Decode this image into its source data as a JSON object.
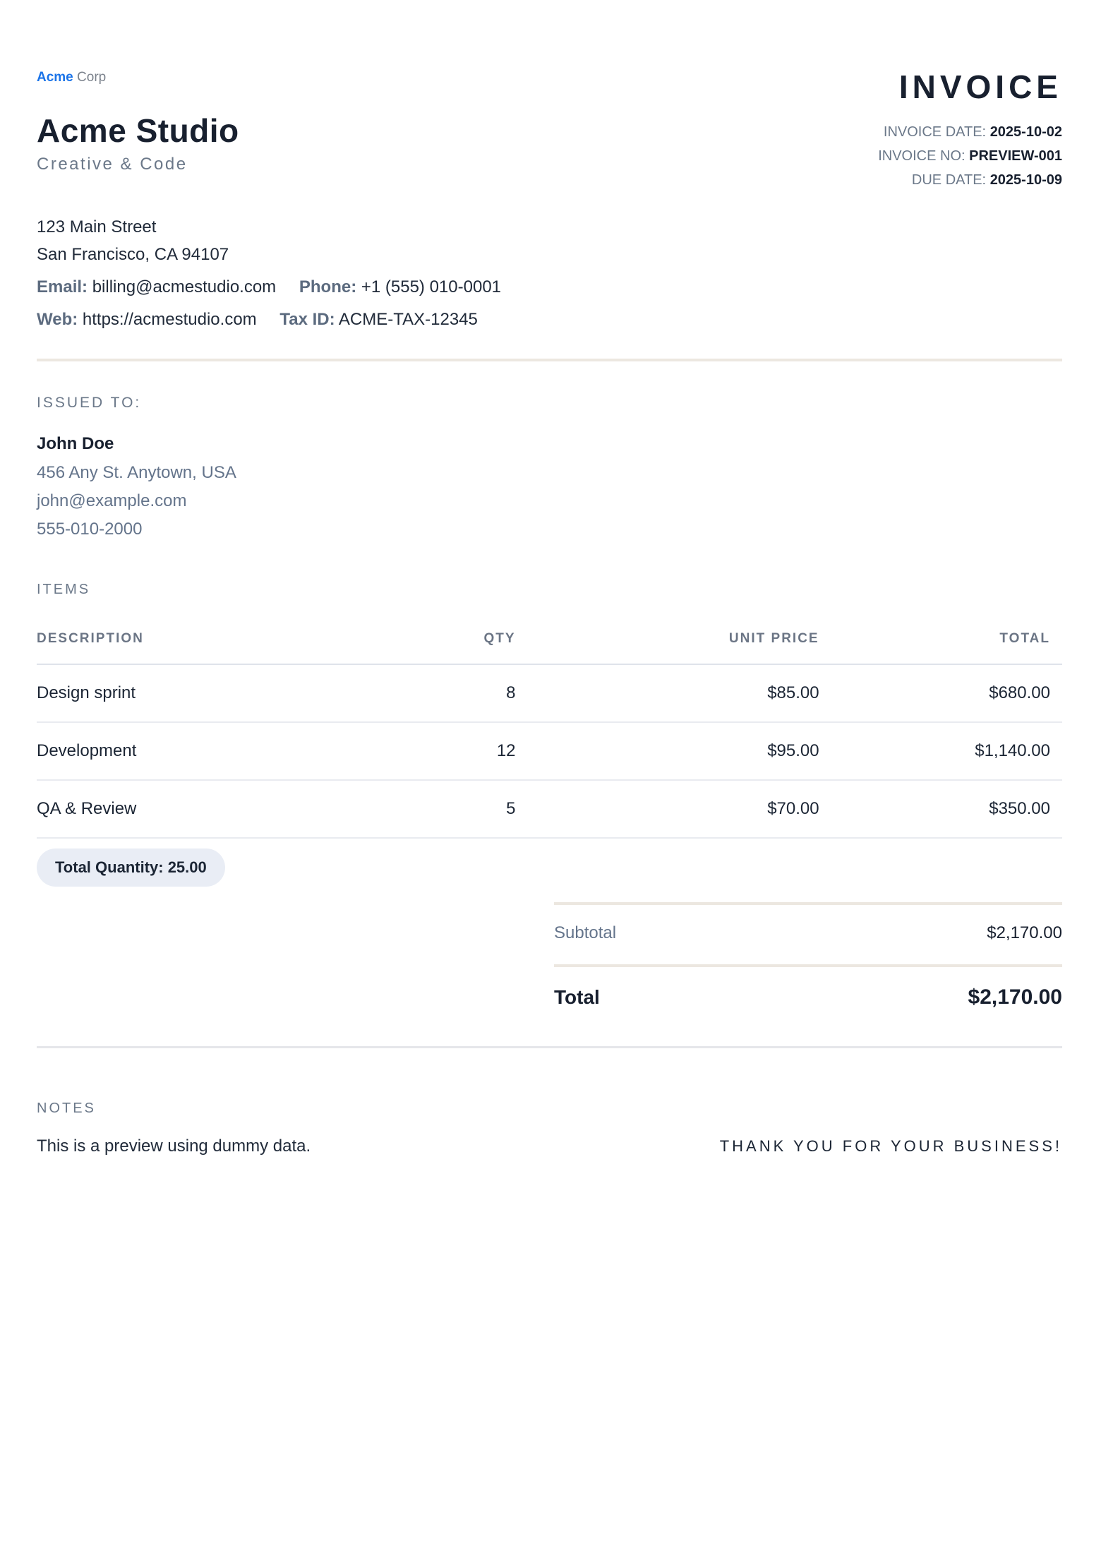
{
  "brand": {
    "logo_primary": "Acme",
    "logo_secondary": "Corp",
    "company_name": "Acme Studio",
    "tagline": "Creative & Code"
  },
  "header": {
    "title": "INVOICE",
    "meta": [
      {
        "label": "INVOICE DATE:",
        "value": "2025-10-02"
      },
      {
        "label": "INVOICE NO:",
        "value": "PREVIEW-001"
      },
      {
        "label": "DUE DATE:",
        "value": "2025-10-09"
      }
    ]
  },
  "company_contact": {
    "address_line1": "123 Main Street",
    "address_line2": "San Francisco, CA 94107",
    "email_label": "Email:",
    "email_value": "billing@acmestudio.com",
    "phone_label": "Phone:",
    "phone_value": "+1 (555) 010-0001",
    "web_label": "Web:",
    "web_value": "https://acmestudio.com",
    "tax_label": "Tax ID:",
    "tax_value": "ACME-TAX-12345"
  },
  "issued_to": {
    "heading": "ISSUED TO:",
    "name": "John Doe",
    "address": "456 Any St. Anytown, USA",
    "email": "john@example.com",
    "phone": "555-010-2000"
  },
  "items": {
    "heading": "ITEMS",
    "columns": [
      "DESCRIPTION",
      "QTY",
      "UNIT PRICE",
      "TOTAL"
    ],
    "rows": [
      [
        "Design sprint",
        "8",
        "$85.00",
        "$680.00"
      ],
      [
        "Development",
        "12",
        "$95.00",
        "$1,140.00"
      ],
      [
        "QA & Review",
        "5",
        "$70.00",
        "$350.00"
      ]
    ],
    "total_quantity_badge": "Total Quantity: 25.00"
  },
  "summary": {
    "subtotal_label": "Subtotal",
    "subtotal_value": "$2,170.00",
    "total_label": "Total",
    "total_value": "$2,170.00"
  },
  "notes": {
    "heading": "NOTES",
    "text": "This is a preview using dummy data.",
    "thanks": "THANK YOU FOR YOUR BUSINESS!"
  },
  "colors": {
    "accent_blue": "#1a73e8",
    "text_dark": "#18202f",
    "text_muted": "#6b7889",
    "divider_beige": "#ece7e0",
    "divider_gray": "#e5e6ea",
    "row_border": "#e9ebf0",
    "badge_bg": "#e9edf5"
  }
}
